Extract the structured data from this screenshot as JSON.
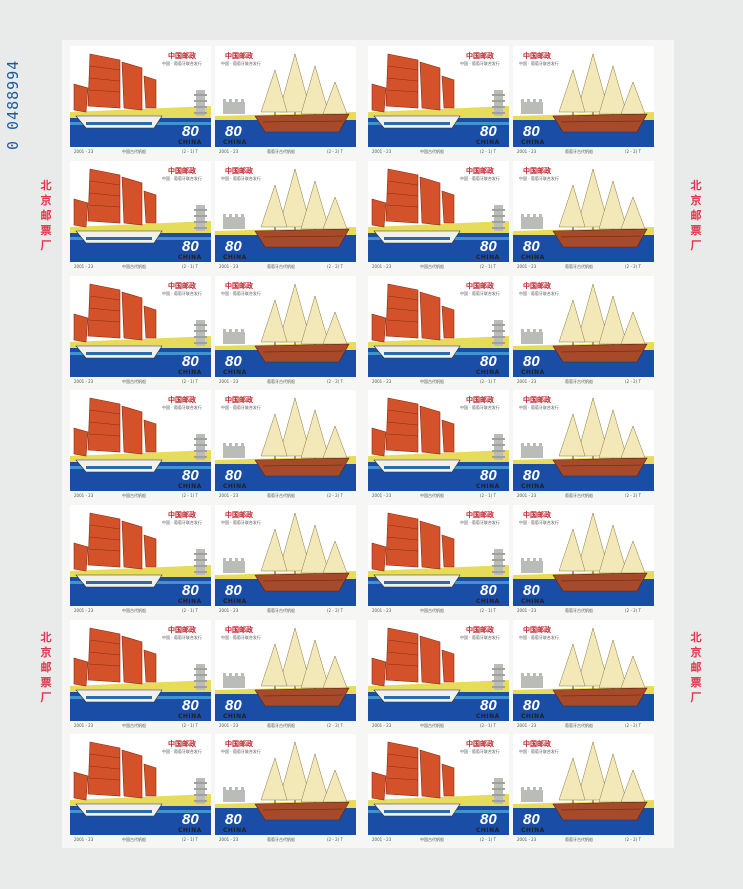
{
  "sheet": {
    "serial_number": "0 0488994",
    "seal_text": [
      "北",
      "京",
      "邮",
      "票",
      "厂"
    ],
    "rows": 7,
    "columns": 4,
    "colors": {
      "sea": "#1a4ea6",
      "sand": "#e6dc5a",
      "junk_sail": "#d4522a",
      "caravel_sail": "#f3e9b8",
      "hull_wood": "#a74a2a"
    }
  },
  "stamps": {
    "chinese": {
      "title": "中国邮政",
      "subtitle": "中国 · 葡萄牙联合发行",
      "value": "80",
      "value_unit": "分",
      "country": "CHINA",
      "caption": "中国古代帆船",
      "issue_code": "2001 - 23",
      "sequence": "(2 - 1) T"
    },
    "portuguese": {
      "title": "中国邮政",
      "subtitle": "中国 · 葡萄牙联合发行",
      "value": "80",
      "value_unit": "分",
      "country": "CHINA",
      "caption": "葡萄牙古代帆船",
      "issue_code": "2001 - 23",
      "sequence": "(2 - 2) T"
    }
  }
}
